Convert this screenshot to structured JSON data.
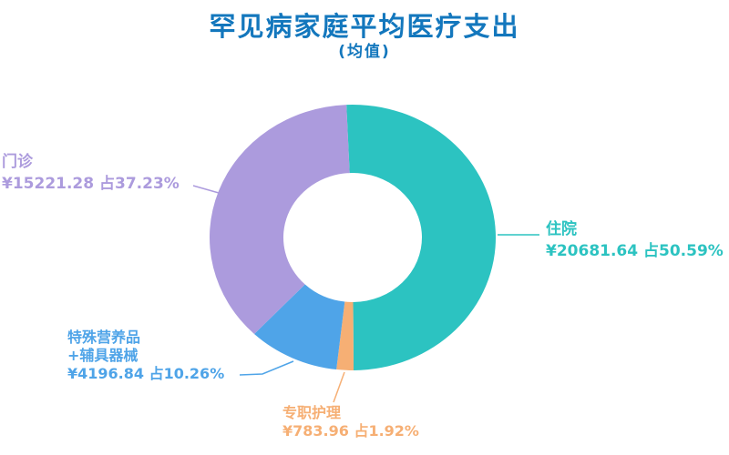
{
  "colors": {
    "title": "#1377BD",
    "background": "#FFFFFF"
  },
  "chart_data": {
    "type": "pie",
    "donut": true,
    "title": "罕见病家庭平均医疗支出",
    "subtitle": "(均值)",
    "unit": "¥",
    "legend": "none",
    "inner_radius_ratio": 0.48,
    "start_angle_deg": -2.5,
    "slices": [
      {
        "key": "hospitalization",
        "name": "住院",
        "value": 20681.64,
        "percent": 50.59,
        "color": "#2CC3C1",
        "label_lines": [
          "住院",
          "¥20681.64 占50.59%"
        ]
      },
      {
        "key": "nursing",
        "name": "专职护理",
        "value": 783.96,
        "percent": 1.92,
        "color": "#F6AF74",
        "label_lines": [
          "专职护理",
          "¥783.96 占1.92%"
        ]
      },
      {
        "key": "nutrition_devices",
        "name": "特殊营养品+辅具器械",
        "value": 4196.84,
        "percent": 10.26,
        "color": "#4FA4E8",
        "label_lines": [
          "特殊营养品",
          "+辅具器械",
          "¥4196.84 占10.26%"
        ]
      },
      {
        "key": "outpatient",
        "name": "门诊",
        "value": 15221.28,
        "percent": 37.23,
        "color": "#AC9BDD",
        "label_lines": [
          "门诊",
          "¥15221.28 占37.23%"
        ]
      }
    ]
  }
}
